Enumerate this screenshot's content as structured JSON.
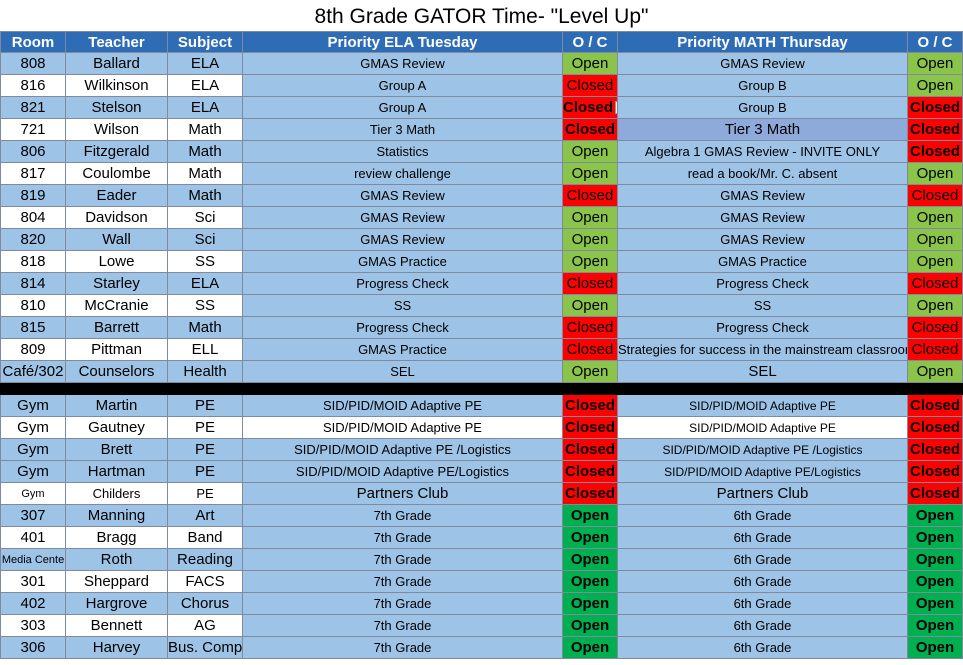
{
  "title": "8th Grade GATOR Time- \"Level Up\"",
  "headers": [
    "Room",
    "Teacher",
    "Subject",
    "Priority ELA Tuesday",
    "O / C",
    "Priority MATH Thursday",
    "O / C"
  ],
  "rows": [
    {
      "room": "808",
      "teacher": "Ballard",
      "subject": "ELA",
      "ela": "GMAS Review",
      "oc1": "Open",
      "math": "GMAS Review",
      "oc2": "Open"
    },
    {
      "room": "816",
      "teacher": "Wilkinson",
      "subject": "ELA",
      "ela": "Group A",
      "oc1": "Closed",
      "math": "Group B",
      "oc2": "Open"
    },
    {
      "room": "821",
      "teacher": "Stelson",
      "subject": "ELA",
      "ela": "Group A",
      "oc1": "Closed",
      "math": "Group B",
      "oc2": "Closed"
    },
    {
      "room": "721",
      "teacher": "Wilson",
      "subject": "Math",
      "ela": "Tier 3 Math",
      "oc1": "Closed",
      "math": "Tier 3 Math",
      "oc2": "Closed"
    },
    {
      "room": "806",
      "teacher": "Fitzgerald",
      "subject": "Math",
      "ela": "Statistics",
      "oc1": "Open",
      "math": "Algebra 1 GMAS Review - INVITE ONLY",
      "oc2": "Closed"
    },
    {
      "room": "817",
      "teacher": "Coulombe",
      "subject": "Math",
      "ela": "review challenge",
      "oc1": "Open",
      "math": "read a book/Mr. C. absent",
      "oc2": "Open"
    },
    {
      "room": "819",
      "teacher": "Eader",
      "subject": "Math",
      "ela": "GMAS Review",
      "oc1": "Closed",
      "math": "GMAS Review",
      "oc2": "Closed"
    },
    {
      "room": "804",
      "teacher": "Davidson",
      "subject": "Sci",
      "ela": "GMAS Review",
      "oc1": "Open",
      "math": "GMAS Review",
      "oc2": "Open"
    },
    {
      "room": "820",
      "teacher": "Wall",
      "subject": "Sci",
      "ela": "GMAS Review",
      "oc1": "Open",
      "math": "GMAS Review",
      "oc2": "Open"
    },
    {
      "room": "818",
      "teacher": "Lowe",
      "subject": "SS",
      "ela": "GMAS Practice",
      "oc1": "Open",
      "math": "GMAS Practice",
      "oc2": "Open"
    },
    {
      "room": "814",
      "teacher": "Starley",
      "subject": "ELA",
      "ela": "Progress Check",
      "oc1": "Closed",
      "math": "Progress Check",
      "oc2": "Closed"
    },
    {
      "room": "810",
      "teacher": "McCranie",
      "subject": "SS",
      "ela": "SS",
      "oc1": "Open",
      "math": "SS",
      "oc2": "Open"
    },
    {
      "room": "815",
      "teacher": "Barrett",
      "subject": "Math",
      "ela": "Progress Check",
      "oc1": "Closed",
      "math": "Progress Check",
      "oc2": "Closed"
    },
    {
      "room": "809",
      "teacher": "Pittman",
      "subject": "ELL",
      "ela": "GMAS Practice",
      "oc1": "Closed",
      "math": "Strategies for success in the mainstream classroom",
      "oc2": "Closed"
    },
    {
      "room": "Café/302",
      "teacher": "Counselors",
      "subject": "Health",
      "ela": "SEL",
      "oc1": "Open",
      "math": "SEL",
      "oc2": "Open"
    }
  ],
  "rows2": [
    {
      "room": "Gym",
      "teacher": "Martin",
      "subject": "PE",
      "ela": "SID/PID/MOID Adaptive PE",
      "oc1": "Closed",
      "math": "SID/PID/MOID Adaptive PE",
      "oc2": "Closed"
    },
    {
      "room": "Gym",
      "teacher": "Gautney",
      "subject": "PE",
      "ela": "SID/PID/MOID Adaptive PE",
      "oc1": "Closed",
      "math": "SID/PID/MOID Adaptive PE",
      "oc2": "Closed"
    },
    {
      "room": "Gym",
      "teacher": "Brett",
      "subject": "PE",
      "ela": "SID/PID/MOID Adaptive PE /Logistics",
      "oc1": "Closed",
      "math": "SID/PID/MOID Adaptive PE /Logistics",
      "oc2": "Closed"
    },
    {
      "room": "Gym",
      "teacher": "Hartman",
      "subject": "PE",
      "ela": "SID/PID/MOID Adaptive PE/Logistics",
      "oc1": "Closed",
      "math": "SID/PID/MOID Adaptive PE/Logistics",
      "oc2": "Closed"
    },
    {
      "room": "Gym",
      "teacher": "Childers",
      "subject": "PE",
      "ela": "Partners Club",
      "oc1": "Closed",
      "math": "Partners Club",
      "oc2": "Closed"
    },
    {
      "room": "307",
      "teacher": "Manning",
      "subject": "Art",
      "ela": "7th Grade",
      "oc1": "Open",
      "math": "6th Grade",
      "oc2": "Open"
    },
    {
      "room": "401",
      "teacher": "Bragg",
      "subject": "Band",
      "ela": "7th Grade",
      "oc1": "Open",
      "math": "6th Grade",
      "oc2": "Open"
    },
    {
      "room": "Media Cente",
      "teacher": "Roth",
      "subject": "Reading",
      "ela": "7th Grade",
      "oc1": "Open",
      "math": "6th Grade",
      "oc2": "Open"
    },
    {
      "room": "301",
      "teacher": "Sheppard",
      "subject": "FACS",
      "ela": "7th Grade",
      "oc1": "Open",
      "math": "6th Grade",
      "oc2": "Open"
    },
    {
      "room": "402",
      "teacher": "Hargrove",
      "subject": "Chorus",
      "ela": "7th Grade",
      "oc1": "Open",
      "math": "6th Grade",
      "oc2": "Open"
    },
    {
      "room": "303",
      "teacher": "Bennett",
      "subject": "AG",
      "ela": "7th Grade",
      "oc1": "Open",
      "math": "6th Grade",
      "oc2": "Open"
    },
    {
      "room": "306",
      "teacher": "Harvey",
      "subject": "Bus. Comp",
      "ela": "7th Grade",
      "oc1": "Open",
      "math": "6th Grade",
      "oc2": "Open"
    }
  ],
  "colors": {
    "header": "#2e6cb5",
    "row_blue": "#9dc3e6",
    "open": "#8ac44a",
    "open_bold": "#00b050",
    "closed": "#ff0000",
    "separator": "#000000"
  }
}
